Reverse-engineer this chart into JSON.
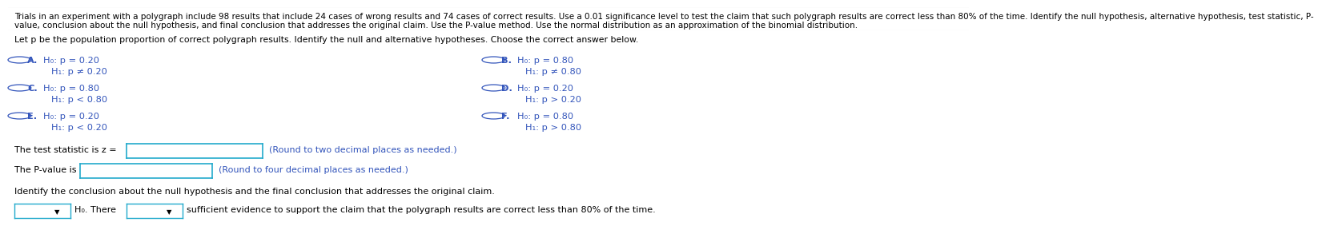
{
  "title_text": "Trials in an experiment with a polygraph include 98 results that include 24 cases of wrong results and 74 cases of correct results. Use a 0.01 significance level to test the claim that such polygraph results are correct less than 80% of the time. Identify the null hypothesis, alternative hypothesis, test statistic, P-",
  "title_text2": "value, conclusion about the null hypothesis, and final conclusion that addresses the original claim. Use the P-value method. Use the normal distribution as an approximation of the binomial distribution.",
  "subtitle": "Let p be the population proportion of correct polygraph results. Identify the null and alternative hypotheses. Choose the correct answer below.",
  "options": [
    {
      "label": "A.",
      "h0": "H₀: p = 0.20",
      "h1": "H₁: p ≠ 0.20"
    },
    {
      "label": "B.",
      "h0": "H₀: p = 0.80",
      "h1": "H₁: p ≠ 0.80"
    },
    {
      "label": "C.",
      "h0": "H₀: p = 0.80",
      "h1": "H₁: p < 0.80"
    },
    {
      "label": "D.",
      "h0": "H₀: p = 0.20",
      "h1": "H₁: p > 0.20"
    },
    {
      "label": "E.",
      "h0": "H₀: p = 0.20",
      "h1": "H₁: p < 0.20"
    },
    {
      "label": "F.",
      "h0": "H₀: p = 0.80",
      "h1": "H₁: p > 0.80"
    }
  ],
  "test_stat_label": "The test statistic is z =",
  "test_stat_hint": "(Round to two decimal places as needed.)",
  "pvalue_label": "The P-value is",
  "pvalue_hint": "(Round to four decimal places as needed.)",
  "conclusion_label": "Identify the conclusion about the null hypothesis and the final conclusion that addresses the original claim.",
  "conclude_suffix": "sufficient evidence to support the claim that the polygraph results are correct less than 80% of the time.",
  "bg_color": "#ffffff",
  "text_color": "#000000",
  "blue_color": "#3355bb",
  "box_border_color": "#22aacc",
  "title_fontsize": 7.5,
  "subtitle_fontsize": 7.8,
  "option_fontsize": 8.2,
  "body_fontsize": 8.0
}
